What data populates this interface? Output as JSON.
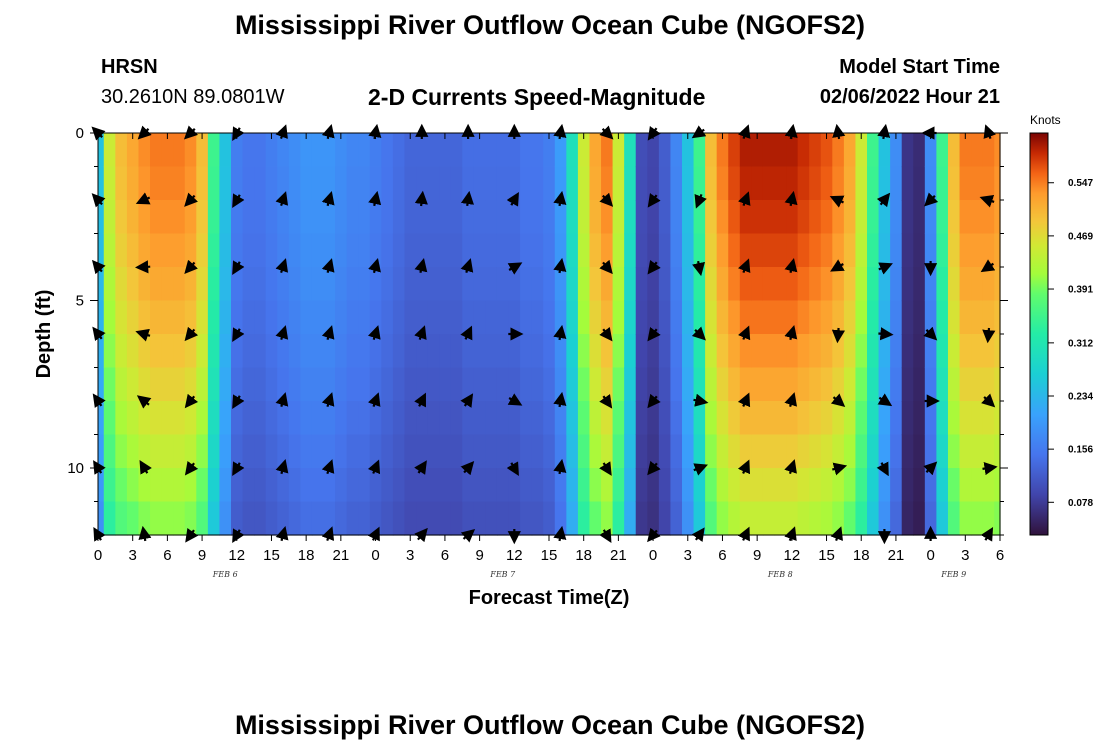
{
  "page": {
    "title": "Mississippi River Outflow Ocean Cube (NGOFS2)",
    "station_id": "HRSN",
    "coordinates": "30.2610N  89.0801W",
    "subtitle": "2-D Currents Speed-Magnitude",
    "model_start_label": "Model Start Time",
    "model_start_value": "02/06/2022 Hour 21",
    "footer_title": "Mississippi River Outflow Ocean Cube (NGOFS2)"
  },
  "chart_data": {
    "type": "heatmap",
    "title": "2-D Currents Speed-Magnitude",
    "xlabel": "Forecast Time(Z)",
    "ylabel": "Depth (ft)",
    "x_range_hours": [
      0,
      78
    ],
    "ylim": [
      12,
      0
    ],
    "y_ticks": [
      0,
      5,
      10
    ],
    "x_ticks": [
      "0",
      "3",
      "6",
      "9",
      "12",
      "15",
      "18",
      "21",
      "0",
      "3",
      "6",
      "9",
      "12",
      "15",
      "18",
      "21",
      "0",
      "3",
      "6",
      "9",
      "12",
      "15",
      "18",
      "21",
      "0",
      "3",
      "6"
    ],
    "date_labels": [
      {
        "label": "FEB 6",
        "hour": 11
      },
      {
        "label": "FEB 7",
        "hour": 35
      },
      {
        "label": "FEB 8",
        "hour": 59
      },
      {
        "label": "FEB 9",
        "hour": 74
      }
    ],
    "colorbar": {
      "unit": "Knots",
      "ticks": [
        0.547,
        0.469,
        0.391,
        0.312,
        0.234,
        0.156,
        0.078
      ],
      "range": [
        0.03,
        0.62
      ]
    },
    "speed_profile": {
      "description": "surface speed (knots) at each hour; decays slightly with depth",
      "hours": [
        0,
        1,
        2,
        3,
        4,
        5,
        6,
        7,
        8,
        9,
        10,
        11,
        12,
        13,
        14,
        15,
        16,
        17,
        18,
        19,
        20,
        21,
        22,
        23,
        24,
        25,
        26,
        27,
        28,
        29,
        30,
        31,
        32,
        33,
        34,
        35,
        36,
        37,
        38,
        39,
        40,
        41,
        42,
        43,
        44,
        45,
        46,
        47,
        48,
        49,
        50,
        51,
        52,
        53,
        54,
        55,
        56,
        57,
        58,
        59,
        60,
        61,
        62,
        63,
        64,
        65,
        66,
        67,
        68,
        69,
        70,
        71,
        72,
        73,
        74,
        75,
        76,
        77,
        78
      ],
      "speed": [
        0.25,
        0.45,
        0.5,
        0.52,
        0.54,
        0.55,
        0.55,
        0.55,
        0.54,
        0.5,
        0.35,
        0.25,
        0.16,
        0.15,
        0.15,
        0.16,
        0.17,
        0.18,
        0.19,
        0.19,
        0.19,
        0.18,
        0.17,
        0.17,
        0.16,
        0.15,
        0.14,
        0.13,
        0.13,
        0.13,
        0.13,
        0.13,
        0.14,
        0.14,
        0.14,
        0.14,
        0.14,
        0.15,
        0.15,
        0.16,
        0.2,
        0.3,
        0.45,
        0.52,
        0.55,
        0.45,
        0.3,
        0.1,
        0.09,
        0.12,
        0.17,
        0.25,
        0.35,
        0.5,
        0.55,
        0.58,
        0.6,
        0.6,
        0.6,
        0.6,
        0.6,
        0.59,
        0.58,
        0.57,
        0.55,
        0.52,
        0.45,
        0.35,
        0.25,
        0.18,
        0.07,
        0.06,
        0.18,
        0.35,
        0.5,
        0.55,
        0.55,
        0.55,
        0.54
      ],
      "depth_decay": 0.28
    },
    "vectors": {
      "depths": [
        0,
        2,
        4,
        6,
        8,
        10,
        12
      ],
      "hours": [
        0,
        4,
        8,
        12,
        16,
        20,
        24,
        28,
        32,
        36,
        40,
        44,
        48,
        52,
        56,
        60,
        64,
        68,
        72,
        77
      ],
      "surface_dirs_deg": [
        315,
        225,
        225,
        210,
        20,
        15,
        10,
        0,
        0,
        0,
        10,
        135,
        215,
        235,
        20,
        10,
        350,
        10,
        270,
        340
      ],
      "deep_dirs_deg": [
        330,
        350,
        215,
        210,
        15,
        20,
        25,
        40,
        50,
        180,
        10,
        150,
        220,
        35,
        25,
        20,
        20,
        180,
        0,
        30
      ]
    }
  }
}
